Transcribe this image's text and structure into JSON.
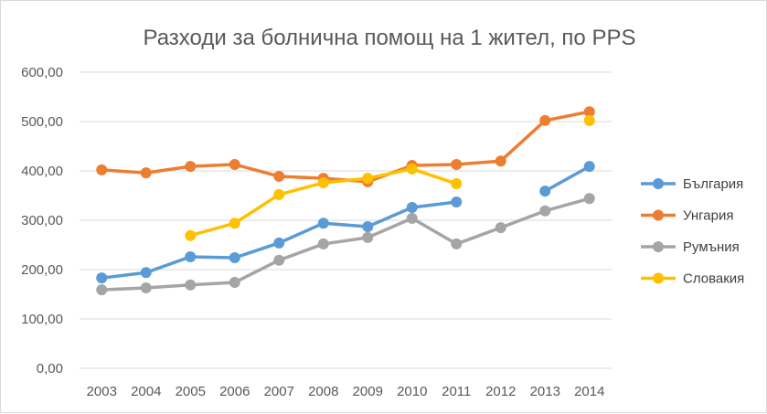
{
  "chart_data": {
    "type": "line",
    "title": "Разходи за болнична помощ на 1 жител, по PPS",
    "xlabel": "",
    "ylabel": "",
    "ylim": [
      0,
      600
    ],
    "ytick_labels": [
      "0,00",
      "100,00",
      "200,00",
      "300,00",
      "400,00",
      "500,00",
      "600,00"
    ],
    "categories": [
      "2003",
      "2004",
      "2005",
      "2006",
      "2007",
      "2008",
      "2009",
      "2010",
      "2011",
      "2012",
      "2013",
      "2014"
    ],
    "grid": true,
    "legend_position": "right",
    "series": [
      {
        "name": "България",
        "color": "#5b9bd5",
        "values": [
          183,
          194,
          226,
          224,
          254,
          294,
          287,
          326,
          337,
          null,
          359,
          409
        ]
      },
      {
        "name": "Унгария",
        "color": "#ed7d31",
        "values": [
          402,
          396,
          409,
          413,
          389,
          385,
          378,
          411,
          413,
          420,
          502,
          520
        ]
      },
      {
        "name": "Румъния",
        "color": "#a5a5a5",
        "values": [
          159,
          163,
          169,
          174,
          219,
          252,
          265,
          304,
          252,
          285,
          319,
          344
        ]
      },
      {
        "name": "Словакия",
        "color": "#ffc000",
        "values": [
          null,
          null,
          269,
          294,
          352,
          376,
          385,
          404,
          374,
          null,
          null,
          502
        ]
      }
    ]
  }
}
